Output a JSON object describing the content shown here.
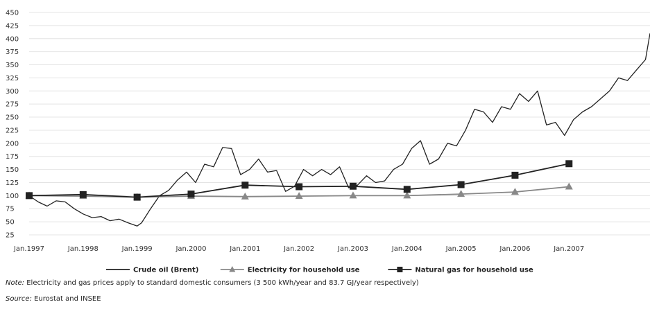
{
  "chart_data": {
    "type": "line",
    "y_ticks": [
      25,
      50,
      75,
      100,
      125,
      150,
      175,
      200,
      225,
      250,
      275,
      300,
      325,
      350,
      375,
      400,
      425,
      450
    ],
    "ylim": [
      25,
      450
    ],
    "grid": true,
    "x_tick_labels": [
      "Jan.1997",
      "Jan.1998",
      "Jan.1999",
      "Jan.2000",
      "Jan.2001",
      "Jan.2002",
      "Jan.2003",
      "Jan.2004",
      "Jan.2005",
      "Jan.2006",
      "Jan.2007"
    ],
    "xlim": [
      "1997-01",
      "2008-07"
    ],
    "legend_position": "bottom",
    "series": [
      {
        "name": "Crude oil (Brent)",
        "color": "#222222",
        "marker": "none",
        "x": [
          "1997-01",
          "1997-03",
          "1997-05",
          "1997-07",
          "1997-09",
          "1997-11",
          "1998-01",
          "1998-03",
          "1998-05",
          "1998-07",
          "1998-09",
          "1998-11",
          "1999-01",
          "1999-02",
          "1999-04",
          "1999-06",
          "1999-08",
          "1999-10",
          "1999-12",
          "2000-02",
          "2000-04",
          "2000-06",
          "2000-08",
          "2000-10",
          "2000-12",
          "2001-02",
          "2001-04",
          "2001-06",
          "2001-08",
          "2001-10",
          "2001-12",
          "2002-02",
          "2002-04",
          "2002-06",
          "2002-08",
          "2002-10",
          "2002-12",
          "2003-02",
          "2003-04",
          "2003-06",
          "2003-08",
          "2003-10",
          "2003-12",
          "2004-02",
          "2004-04",
          "2004-06",
          "2004-08",
          "2004-10",
          "2004-12",
          "2005-02",
          "2005-04",
          "2005-06",
          "2005-08",
          "2005-10",
          "2005-12",
          "2006-02",
          "2006-04",
          "2006-06",
          "2006-08",
          "2006-10",
          "2006-12",
          "2007-02",
          "2007-04",
          "2007-06",
          "2007-08",
          "2007-10",
          "2007-12",
          "2008-02",
          "2008-04",
          "2008-06",
          "2008-07"
        ],
        "values": [
          100,
          88,
          80,
          90,
          88,
          75,
          65,
          58,
          60,
          52,
          55,
          48,
          42,
          48,
          75,
          100,
          110,
          130,
          145,
          125,
          160,
          155,
          192,
          190,
          140,
          150,
          170,
          145,
          148,
          108,
          118,
          150,
          138,
          150,
          140,
          155,
          115,
          120,
          138,
          125,
          128,
          150,
          160,
          190,
          205,
          160,
          170,
          200,
          195,
          225,
          265,
          260,
          240,
          270,
          265,
          295,
          280,
          300,
          235,
          240,
          215,
          245,
          260,
          270,
          285,
          300,
          325,
          320,
          340,
          360,
          410
        ]
      },
      {
        "name": "Electricity for household use",
        "color": "#888888",
        "marker": "triangle",
        "x": [
          "1997-01",
          "1998-01",
          "1999-01",
          "2000-01",
          "2001-01",
          "2002-01",
          "2003-01",
          "2004-01",
          "2005-01",
          "2006-01",
          "2007-01"
        ],
        "values": [
          100,
          99,
          97,
          99,
          98,
          99,
          100,
          100,
          103,
          107,
          117
        ]
      },
      {
        "name": "Natural gas for household use",
        "color": "#222222",
        "marker": "square",
        "x": [
          "1997-01",
          "1998-01",
          "1999-01",
          "2000-01",
          "2001-01",
          "2002-01",
          "2003-01",
          "2004-01",
          "2005-01",
          "2006-01",
          "2007-01"
        ],
        "values": [
          100,
          102,
          97,
          103,
          120,
          117,
          118,
          112,
          121,
          139,
          161
        ]
      }
    ]
  },
  "note": {
    "label": "Note:",
    "text": " Electricity and gas prices apply to standard domestic consumers (3 500 kWh/year and 83.7 GJ/year respectively)"
  },
  "source": {
    "label": "Source:",
    "text": " Eurostat and INSEE"
  }
}
